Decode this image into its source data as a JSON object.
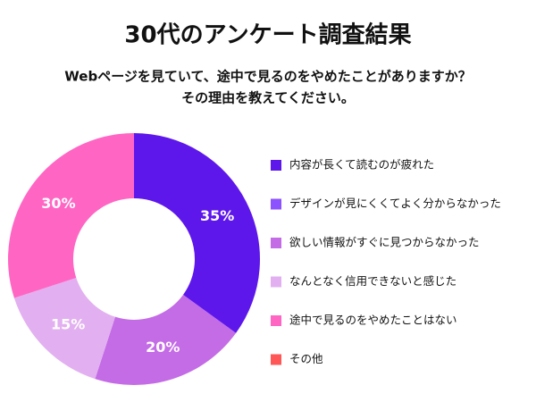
{
  "chart_data": {
    "type": "donut",
    "title": "30代のアンケート調査結果",
    "subtitle": [
      "Webページを見ていて、途中で見るのをやめたことがありますか？",
      "その理由を教えてください。"
    ],
    "categories": [
      "内容が長くて読むのが疲れた",
      "デザインが見にくくてよく分からなかった",
      "欲しい情報がすぐに見つからなかった",
      "なんとなく信用できないと感じた",
      "途中で見るのをやめたことはない",
      "その他"
    ],
    "values": [
      35,
      0,
      20,
      15,
      30,
      0
    ],
    "value_labels": [
      "35%",
      null,
      "20%",
      "15%",
      "30%",
      null
    ],
    "colors": [
      "#5e17eb",
      "#8c52ff",
      "#c46be6",
      "#e2b0f0",
      "#ff66c4",
      "#ff5757"
    ],
    "legend": "right"
  }
}
